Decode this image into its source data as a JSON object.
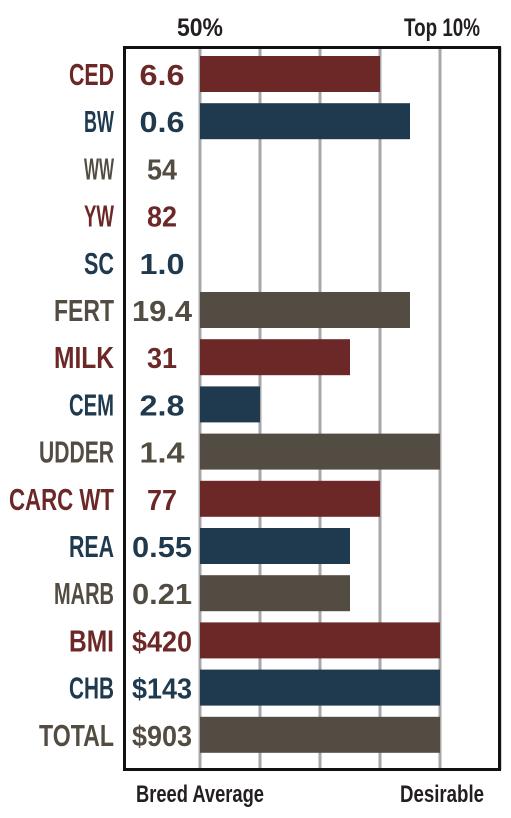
{
  "colors": {
    "red": "#6b2827",
    "blue": "#1f3a4f",
    "gray": "#534c42",
    "frame": "#111111",
    "grid": "#a7a7ab"
  },
  "chart_data": {
    "type": "bar",
    "orientation": "horizontal",
    "top_labels": [
      "50%",
      "Top 10%"
    ],
    "bottom_labels": [
      "Breed Average",
      "Desirable"
    ],
    "scale_max": 5,
    "grid": true,
    "rows": [
      {
        "trait": "CED",
        "value": "6.6",
        "level": 3,
        "color": "red"
      },
      {
        "trait": "BW",
        "value": "0.6",
        "level": 3.5,
        "color": "blue"
      },
      {
        "trait": "WW",
        "value": "54",
        "level": 0,
        "color": "gray"
      },
      {
        "trait": "YW",
        "value": "82",
        "level": 0,
        "color": "red"
      },
      {
        "trait": "SC",
        "value": "1.0",
        "level": 0,
        "color": "blue"
      },
      {
        "trait": "FERT",
        "value": "19.4",
        "level": 3.5,
        "color": "gray"
      },
      {
        "trait": "MILK",
        "value": "31",
        "level": 2.5,
        "color": "red"
      },
      {
        "trait": "CEM",
        "value": "2.8",
        "level": 1,
        "color": "blue"
      },
      {
        "trait": "UDDER",
        "value": "1.4",
        "level": 4,
        "color": "gray"
      },
      {
        "trait": "CARC WT",
        "value": "77",
        "level": 3,
        "color": "red"
      },
      {
        "trait": "REA",
        "value": "0.55",
        "level": 2.5,
        "color": "blue"
      },
      {
        "trait": "MARB",
        "value": "0.21",
        "level": 2.5,
        "color": "gray"
      },
      {
        "trait": "BMI",
        "value": "$420",
        "level": 4,
        "color": "red"
      },
      {
        "trait": "CHB",
        "value": "$143",
        "level": 4,
        "color": "blue"
      },
      {
        "trait": "TOTAL",
        "value": "$903",
        "level": 4,
        "color": "gray"
      }
    ]
  }
}
